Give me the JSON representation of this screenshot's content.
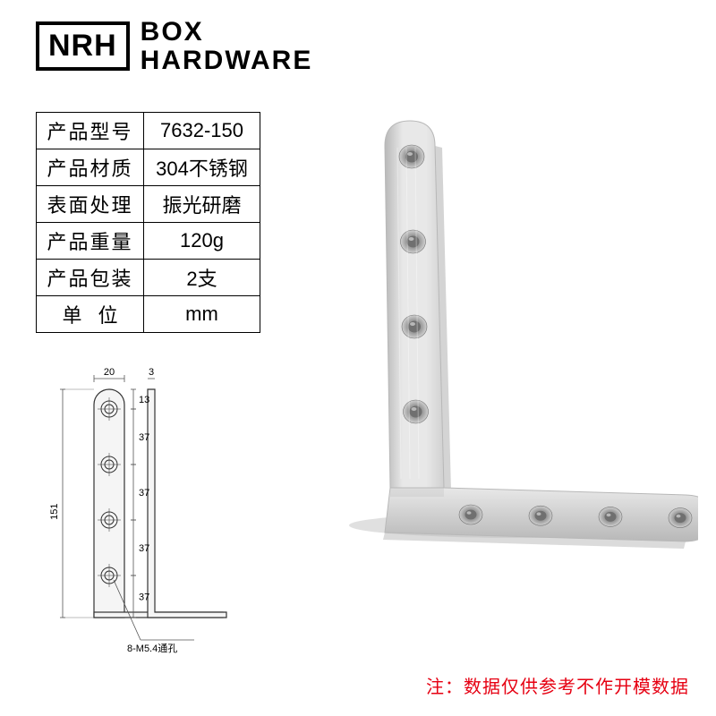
{
  "logo": {
    "brand": "NRH",
    "line1": "BOX",
    "line2": "HARDWARE"
  },
  "spec_table": {
    "rows": [
      {
        "label": "产品型号",
        "value": "7632-150"
      },
      {
        "label": "产品材质",
        "value": "304不锈钢"
      },
      {
        "label": "表面处理",
        "value": "振光研磨"
      },
      {
        "label": "产品重量",
        "value": "120g"
      },
      {
        "label": "产品包装",
        "value": "2支"
      },
      {
        "label": "单位",
        "value": "mm",
        "unit_style": true
      }
    ]
  },
  "diagram": {
    "dims": {
      "width_top": "20",
      "thickness": "3",
      "top_offset": "13",
      "hole_spacing": [
        "37",
        "37",
        "37",
        "37"
      ],
      "total_height": "151",
      "hole_note": "8-M5.4通孔"
    },
    "colors": {
      "stroke": "#333333",
      "fill": "#f5f5f5",
      "dimline": "#555555"
    }
  },
  "photo": {
    "metal_light": "#e8e8e8",
    "metal_mid": "#d0d0d0",
    "metal_dark": "#b8b8b8",
    "hole_outer": "#a0a0a0",
    "hole_inner": "#707070"
  },
  "footnote": "注：数据仅供参考不作开模数据"
}
